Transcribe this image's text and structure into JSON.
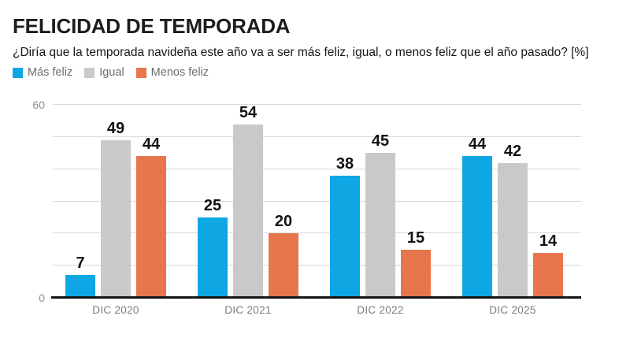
{
  "header": {
    "title": "FELICIDAD DE TEMPORADA",
    "subtitle": "¿Diría que la temporada navideña este año va a ser más feliz, igual, o menos feliz que el año pasado? [%]"
  },
  "chart_data": {
    "type": "bar",
    "title": "FELICIDAD DE TEMPORADA",
    "categories": [
      "DIC 2020",
      "DIC 2021",
      "DIC 2022",
      "DIC 2025"
    ],
    "series": [
      {
        "name": "Más feliz",
        "color": "#0EA7E4",
        "values": [
          7,
          25,
          38,
          44
        ]
      },
      {
        "name": "Igual",
        "color": "#C9C9C9",
        "values": [
          49,
          54,
          45,
          42
        ]
      },
      {
        "name": "Menos feliz",
        "color": "#E7764C",
        "values": [
          44,
          20,
          15,
          14
        ]
      }
    ],
    "ylim": [
      0,
      60
    ],
    "gridline_step": 10,
    "y_ticks_labeled": [
      {
        "value": 60,
        "label": "60"
      },
      {
        "value": 0,
        "label": "0"
      }
    ],
    "value_labels": true,
    "grid": true,
    "legend_position": "top-left"
  },
  "colors": {
    "background": "#ffffff",
    "title_text": "#1d1d1d",
    "subtitle_text": "#161616",
    "legend_text": "#6d6d6d",
    "axis_tick_text": "#8c8c8c",
    "category_text": "#7c7c7c",
    "gridline": "#d9d9d9",
    "baseline": "#141414",
    "value_label_text": "#111111"
  }
}
